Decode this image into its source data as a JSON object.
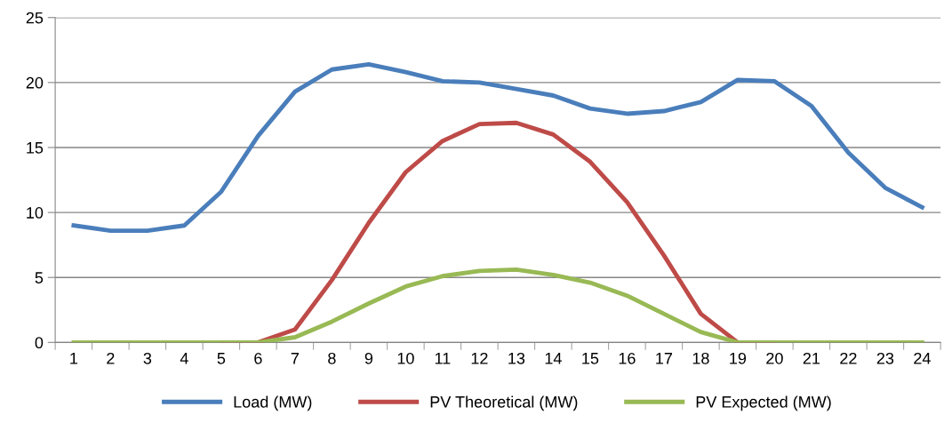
{
  "chart_data": {
    "type": "line",
    "categories": [
      "1",
      "2",
      "3",
      "4",
      "5",
      "6",
      "7",
      "8",
      "9",
      "10",
      "11",
      "12",
      "13",
      "14",
      "15",
      "16",
      "17",
      "18",
      "19",
      "20",
      "21",
      "22",
      "23",
      "24"
    ],
    "series": [
      {
        "name": "Load (MW)",
        "color": "#4a7ebb",
        "values": [
          9.0,
          8.6,
          8.6,
          9.0,
          11.6,
          15.9,
          19.3,
          21.0,
          21.4,
          20.8,
          20.1,
          20.0,
          19.5,
          19.0,
          18.0,
          17.6,
          17.8,
          18.5,
          20.2,
          20.1,
          18.2,
          14.6,
          11.9,
          10.4
        ]
      },
      {
        "name": "PV Theoretical (MW)",
        "color": "#be4b48",
        "values": [
          null,
          null,
          null,
          null,
          0,
          0,
          1.0,
          4.8,
          9.2,
          13.1,
          15.5,
          16.8,
          16.9,
          16.0,
          13.9,
          10.8,
          6.7,
          2.2,
          0,
          0,
          null,
          null,
          null,
          null
        ]
      },
      {
        "name": "PV Expected (MW)",
        "color": "#98b954",
        "values": [
          0,
          0,
          0,
          0,
          0,
          0,
          0.4,
          1.6,
          3.0,
          4.3,
          5.1,
          5.5,
          5.6,
          5.2,
          4.6,
          3.6,
          2.2,
          0.8,
          0,
          0,
          0,
          0,
          0,
          0
        ]
      }
    ],
    "ylim": [
      0,
      25
    ],
    "yticks": [
      0,
      5,
      10,
      15,
      20,
      25
    ],
    "grid": "y",
    "legend": "bottom",
    "marker": "none",
    "line_style": "solid"
  }
}
